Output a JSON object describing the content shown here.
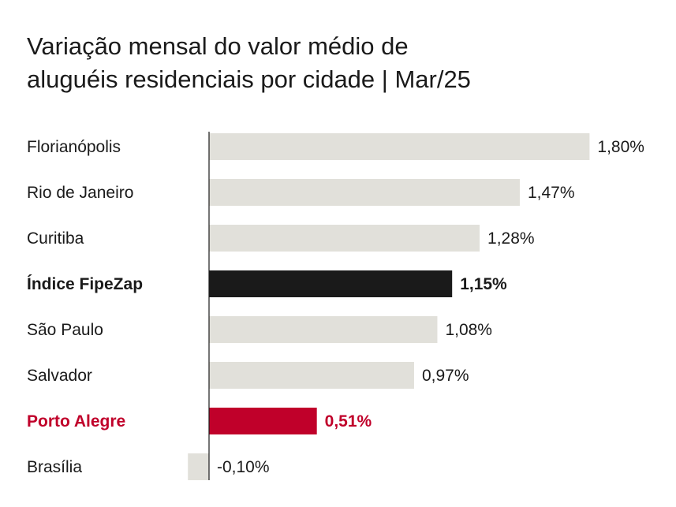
{
  "chart_data": {
    "type": "bar",
    "orientation": "horizontal",
    "title_lines": [
      "Variação mensal do valor médio de",
      "aluguéis residenciais por cidade | Mar/25"
    ],
    "categories": [
      "Florianópolis",
      "Rio de Janeiro",
      "Curitiba",
      "Índice FipeZap",
      "São Paulo",
      "Salvador",
      "Porto Alegre",
      "Brasília"
    ],
    "values": [
      1.8,
      1.47,
      1.28,
      1.15,
      1.08,
      0.97,
      0.51,
      -0.1
    ],
    "value_labels": [
      "1,80%",
      "1,47%",
      "1,28%",
      "1,15%",
      "1,08%",
      "0,97%",
      "0,51%",
      "-0,10%"
    ],
    "highlights": {
      "Índice FipeZap": {
        "color": "#1a1a1a",
        "bold": true
      },
      "Porto Alegre": {
        "color": "#c0002a",
        "bold": true
      }
    },
    "default_bar_color": "#e1e0da",
    "text_color": "#1a1a1a",
    "xlim": [
      -0.1,
      1.8
    ],
    "grid": false,
    "legend": "none"
  }
}
